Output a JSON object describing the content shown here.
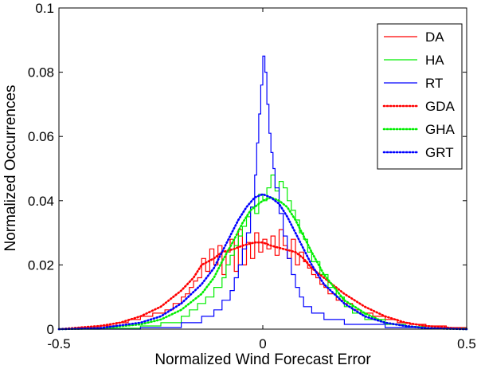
{
  "chart_data": {
    "type": "line",
    "title": "",
    "xlabel": "Normalized Wind Forecast Error",
    "ylabel": "Normalized Occurrences",
    "xlim": [
      -0.5,
      0.5
    ],
    "ylim": [
      0,
      0.1
    ],
    "x_ticks": [
      -0.5,
      0,
      0.5
    ],
    "x_tick_labels": [
      "-0.5",
      "0",
      "0.5"
    ],
    "y_ticks": [
      0,
      0.02,
      0.04,
      0.06,
      0.08,
      0.1
    ],
    "y_tick_labels": [
      "0",
      "0.02",
      "0.04",
      "0.06",
      "0.08",
      "0.1"
    ],
    "grid": false,
    "legend_position": "top-right",
    "series": [
      {
        "name": "DA",
        "style": "solid",
        "color": "#ff0000",
        "step": true,
        "x": [
          -0.5,
          -0.45,
          -0.4,
          -0.36,
          -0.33,
          -0.3,
          -0.27,
          -0.24,
          -0.22,
          -0.2,
          -0.19,
          -0.18,
          -0.17,
          -0.16,
          -0.15,
          -0.14,
          -0.13,
          -0.12,
          -0.11,
          -0.1,
          -0.09,
          -0.08,
          -0.07,
          -0.06,
          -0.05,
          -0.04,
          -0.03,
          -0.02,
          -0.01,
          0,
          0.01,
          0.02,
          0.03,
          0.04,
          0.05,
          0.06,
          0.07,
          0.08,
          0.09,
          0.1,
          0.11,
          0.12,
          0.13,
          0.14,
          0.15,
          0.16,
          0.18,
          0.2,
          0.22,
          0.24,
          0.27,
          0.3,
          0.33,
          0.36,
          0.4,
          0.45,
          0.5
        ],
        "y": [
          0,
          0.0005,
          0.001,
          0.002,
          0.003,
          0.004,
          0.005,
          0.006,
          0.008,
          0.01,
          0.011,
          0.013,
          0.015,
          0.016,
          0.022,
          0.018,
          0.025,
          0.02,
          0.026,
          0.017,
          0.024,
          0.028,
          0.018,
          0.031,
          0.02,
          0.027,
          0.022,
          0.03,
          0.024,
          0.028,
          0.025,
          0.029,
          0.023,
          0.031,
          0.026,
          0.022,
          0.028,
          0.02,
          0.024,
          0.021,
          0.019,
          0.017,
          0.016,
          0.014,
          0.013,
          0.011,
          0.009,
          0.008,
          0.006,
          0.005,
          0.004,
          0.003,
          0.002,
          0.0015,
          0.001,
          0.0005,
          0
        ]
      },
      {
        "name": "HA",
        "style": "solid",
        "color": "#00ee00",
        "step": true,
        "x": [
          -0.5,
          -0.4,
          -0.3,
          -0.25,
          -0.2,
          -0.18,
          -0.16,
          -0.14,
          -0.12,
          -0.1,
          -0.09,
          -0.08,
          -0.07,
          -0.06,
          -0.05,
          -0.04,
          -0.03,
          -0.02,
          -0.01,
          0,
          0.01,
          0.02,
          0.03,
          0.04,
          0.05,
          0.06,
          0.07,
          0.08,
          0.09,
          0.1,
          0.11,
          0.12,
          0.14,
          0.16,
          0.18,
          0.2,
          0.22,
          0.25,
          0.3,
          0.35,
          0.4,
          0.5
        ],
        "y": [
          0,
          0.0003,
          0.001,
          0.002,
          0.004,
          0.006,
          0.008,
          0.01,
          0.013,
          0.016,
          0.02,
          0.023,
          0.026,
          0.029,
          0.032,
          0.035,
          0.038,
          0.036,
          0.042,
          0.04,
          0.044,
          0.048,
          0.043,
          0.046,
          0.044,
          0.04,
          0.037,
          0.034,
          0.03,
          0.028,
          0.024,
          0.021,
          0.017,
          0.013,
          0.01,
          0.007,
          0.005,
          0.003,
          0.0015,
          0.0008,
          0.0003,
          0
        ]
      },
      {
        "name": "RT",
        "style": "solid",
        "color": "#0000ff",
        "step": true,
        "x": [
          -0.5,
          -0.3,
          -0.2,
          -0.15,
          -0.12,
          -0.1,
          -0.08,
          -0.07,
          -0.06,
          -0.05,
          -0.04,
          -0.03,
          -0.02,
          -0.015,
          -0.01,
          -0.005,
          0,
          0.005,
          0.01,
          0.015,
          0.02,
          0.025,
          0.03,
          0.04,
          0.05,
          0.06,
          0.07,
          0.08,
          0.09,
          0.1,
          0.12,
          0.15,
          0.2,
          0.3,
          0.4,
          0.5
        ],
        "y": [
          0,
          0.0005,
          0.002,
          0.004,
          0.006,
          0.009,
          0.012,
          0.016,
          0.02,
          0.025,
          0.03,
          0.038,
          0.048,
          0.058,
          0.067,
          0.076,
          0.085,
          0.08,
          0.07,
          0.061,
          0.055,
          0.05,
          0.044,
          0.036,
          0.029,
          0.022,
          0.017,
          0.013,
          0.01,
          0.007,
          0.005,
          0.003,
          0.0015,
          0.0005,
          0.0002,
          0
        ]
      },
      {
        "name": "GDA",
        "style": "dotted",
        "color": "#ff0000",
        "x": [
          -0.5,
          -0.4,
          -0.35,
          -0.3,
          -0.25,
          -0.2,
          -0.17,
          -0.15,
          -0.12,
          -0.1,
          -0.07,
          -0.05,
          -0.02,
          0,
          0.02,
          0.05,
          0.08,
          0.1,
          0.12,
          0.15,
          0.2,
          0.25,
          0.3,
          0.35,
          0.4,
          0.5
        ],
        "y": [
          0,
          0.001,
          0.002,
          0.004,
          0.007,
          0.012,
          0.016,
          0.02,
          0.022,
          0.024,
          0.025,
          0.026,
          0.027,
          0.027,
          0.026,
          0.025,
          0.024,
          0.022,
          0.019,
          0.016,
          0.011,
          0.007,
          0.004,
          0.002,
          0.001,
          0
        ]
      },
      {
        "name": "GHA",
        "style": "dotted",
        "color": "#00ee00",
        "x": [
          -0.5,
          -0.4,
          -0.3,
          -0.25,
          -0.2,
          -0.15,
          -0.12,
          -0.1,
          -0.07,
          -0.05,
          -0.03,
          0,
          0.02,
          0.04,
          0.06,
          0.08,
          0.1,
          0.12,
          0.15,
          0.2,
          0.25,
          0.3,
          0.35,
          0.4,
          0.5
        ],
        "y": [
          0,
          0.0003,
          0.0015,
          0.003,
          0.006,
          0.011,
          0.016,
          0.021,
          0.028,
          0.033,
          0.037,
          0.04,
          0.041,
          0.04,
          0.038,
          0.034,
          0.029,
          0.024,
          0.017,
          0.009,
          0.005,
          0.002,
          0.001,
          0.0003,
          0
        ]
      },
      {
        "name": "GRT",
        "style": "dotted",
        "color": "#0000ff",
        "x": [
          -0.5,
          -0.4,
          -0.3,
          -0.25,
          -0.2,
          -0.15,
          -0.12,
          -0.1,
          -0.08,
          -0.06,
          -0.04,
          -0.02,
          0,
          0.02,
          0.04,
          0.06,
          0.08,
          0.1,
          0.12,
          0.15,
          0.2,
          0.25,
          0.3,
          0.35,
          0.4,
          0.5
        ],
        "y": [
          0,
          0.0003,
          0.002,
          0.004,
          0.008,
          0.014,
          0.019,
          0.024,
          0.029,
          0.034,
          0.038,
          0.041,
          0.042,
          0.041,
          0.039,
          0.035,
          0.03,
          0.025,
          0.02,
          0.014,
          0.008,
          0.004,
          0.002,
          0.001,
          0.0003,
          0
        ]
      }
    ]
  }
}
